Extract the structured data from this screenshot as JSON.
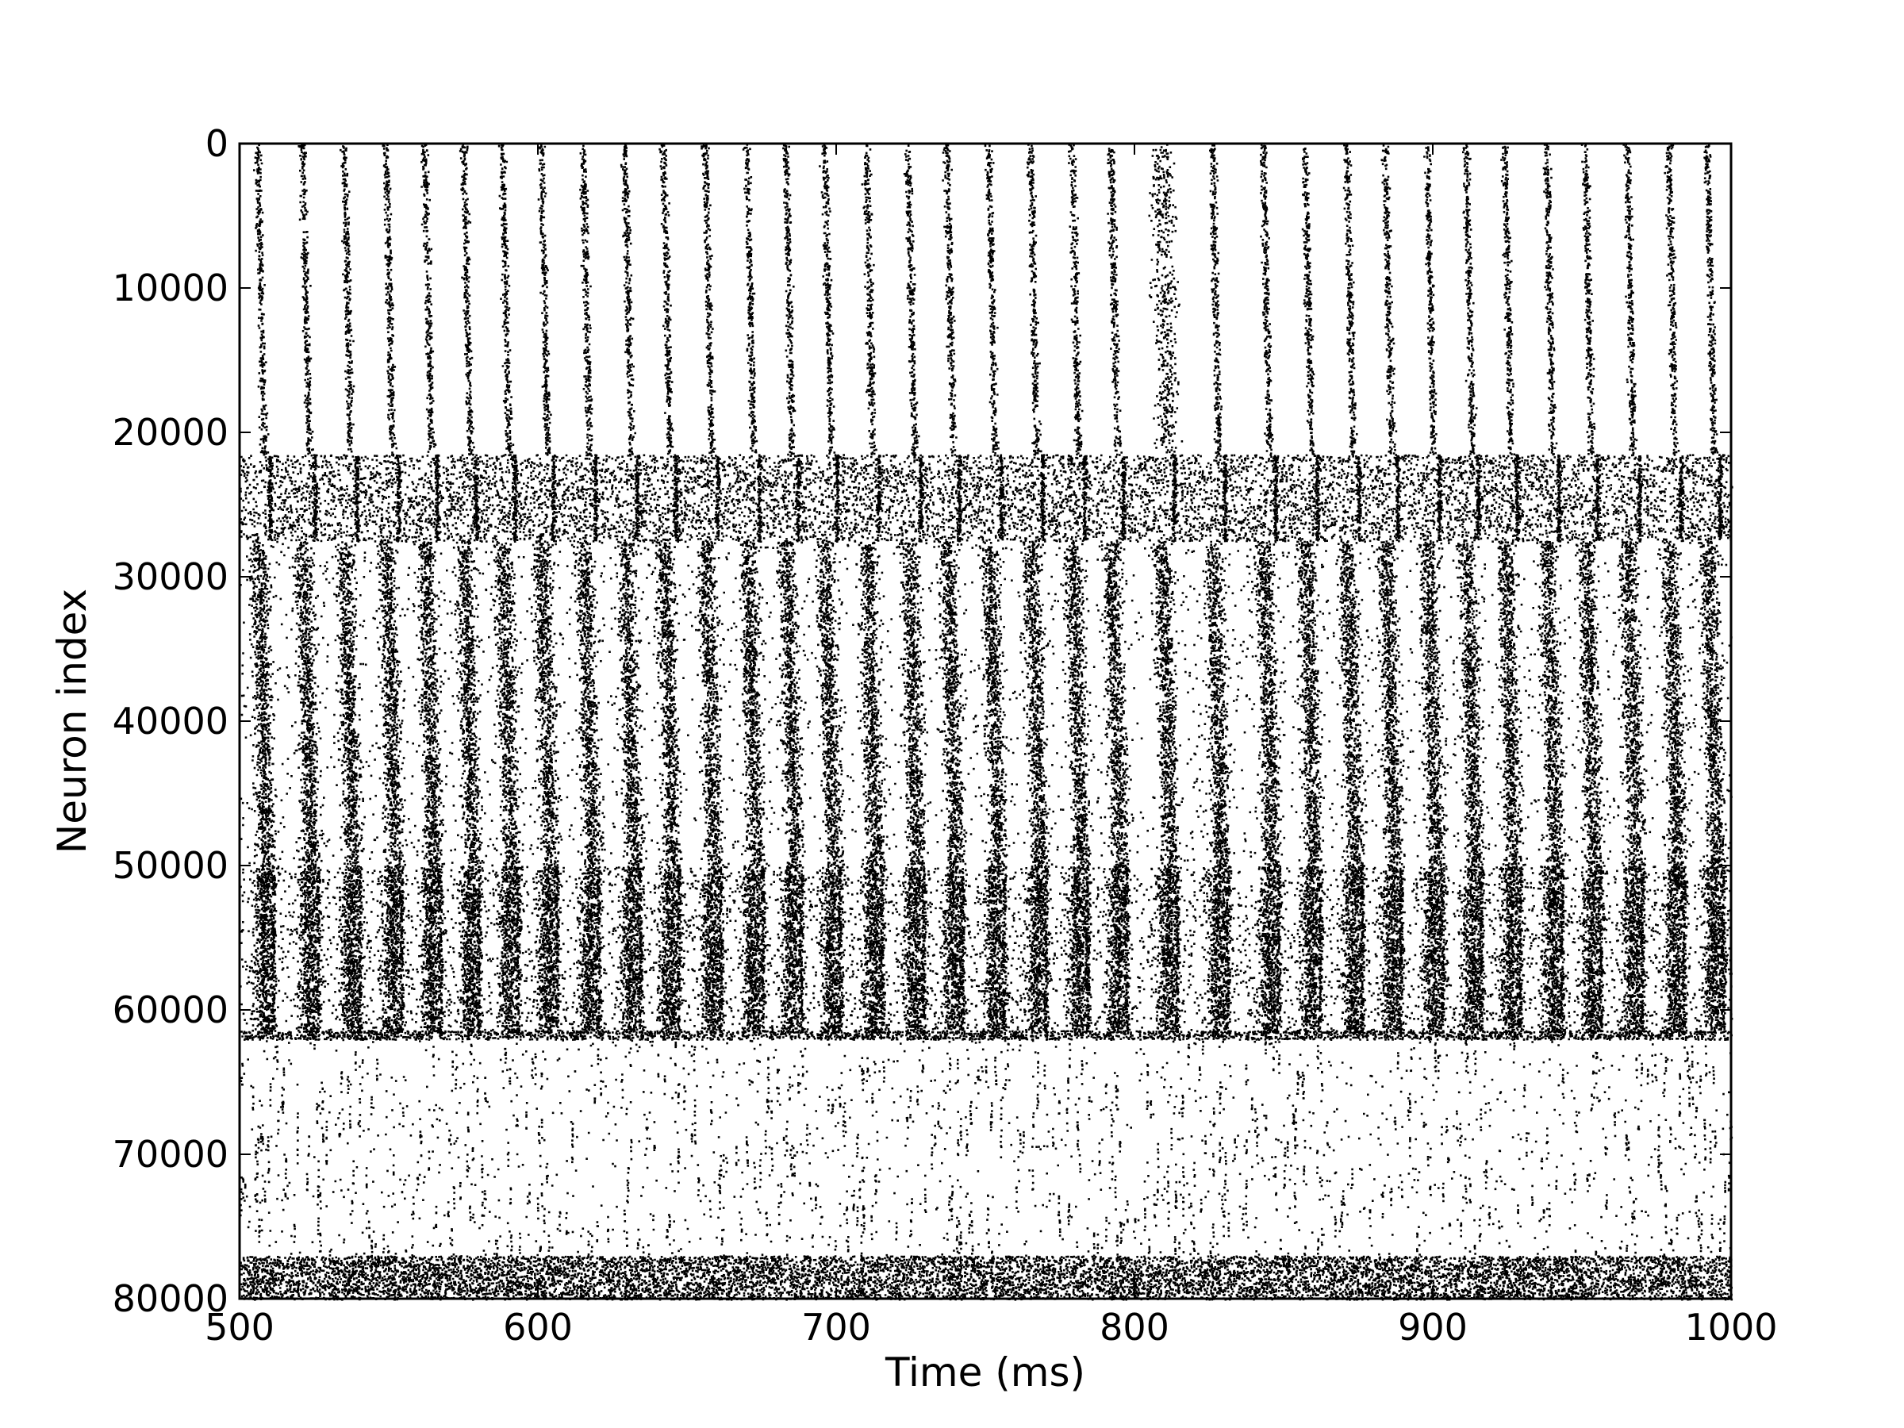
{
  "chart_data": {
    "type": "scatter",
    "title": "",
    "xlabel": "Time (ms)",
    "ylabel": "Neuron index",
    "xlim": [
      500,
      1000
    ],
    "ylim": [
      80000,
      0
    ],
    "y_inverted": true,
    "grid": false,
    "legend": "none",
    "marker_color": "#000000",
    "xticks": [
      500,
      600,
      700,
      800,
      900,
      1000
    ],
    "yticks": [
      0,
      10000,
      20000,
      30000,
      40000,
      50000,
      60000,
      70000,
      80000
    ],
    "xtick_labels": [
      "500",
      "600",
      "700",
      "800",
      "900",
      "1000"
    ],
    "ytick_labels": [
      "0",
      "10000",
      "20000",
      "30000",
      "40000",
      "50000",
      "60000",
      "70000",
      "80000"
    ],
    "populations": [
      {
        "y_range": [
          0,
          21500
        ],
        "pattern": "sparse synchronous volleys"
      },
      {
        "y_range": [
          21500,
          27500
        ],
        "pattern": "dense asynchronous with bursts"
      },
      {
        "y_range": [
          27500,
          50000
        ],
        "pattern": "dense synchronous bands"
      },
      {
        "y_range": [
          50000,
          61500
        ],
        "pattern": "very dense bands"
      },
      {
        "y_range": [
          61500,
          62000
        ],
        "pattern": "dense thin stripe"
      },
      {
        "y_range": [
          62000,
          77000
        ],
        "pattern": "sparse random"
      },
      {
        "y_range": [
          77000,
          80000
        ],
        "pattern": "dense continuous"
      }
    ],
    "burst_times_ms": [
      507,
      522,
      536,
      550,
      563,
      576,
      589,
      602,
      616,
      630,
      643,
      657,
      671,
      684,
      697,
      711,
      725,
      738,
      752,
      766,
      780,
      793,
      810,
      827,
      844,
      858,
      872,
      885,
      899,
      912,
      925,
      939,
      952,
      966,
      980,
      993
    ]
  }
}
